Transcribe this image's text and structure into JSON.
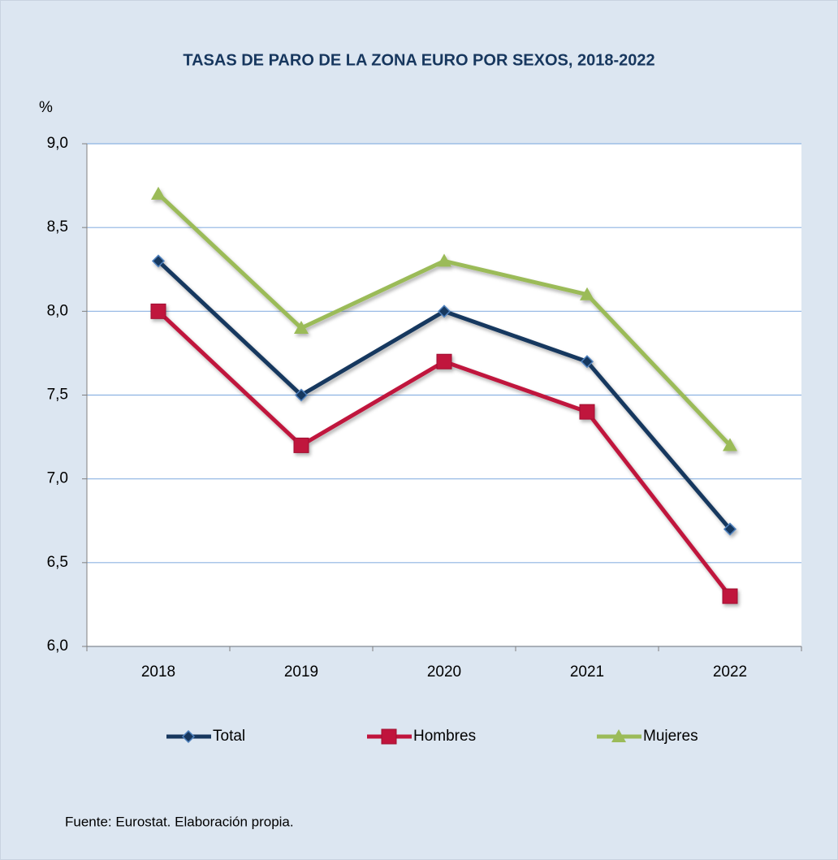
{
  "chart_data": {
    "type": "line",
    "title": "TASAS DE PARO DE LA ZONA EURO POR SEXOS, 2018-2022",
    "y_label": "%",
    "categories": [
      "2018",
      "2019",
      "2020",
      "2021",
      "2022"
    ],
    "series": [
      {
        "name": "Total",
        "color": "#17375e",
        "marker": "diamond",
        "values": [
          8.3,
          7.5,
          8.0,
          7.7,
          6.7
        ]
      },
      {
        "name": "Hombres",
        "color": "#c0143c",
        "marker": "square",
        "values": [
          8.0,
          7.2,
          7.7,
          7.4,
          6.3
        ]
      },
      {
        "name": "Mujeres",
        "color": "#9bbb59",
        "marker": "triangle",
        "values": [
          8.7,
          7.9,
          8.3,
          8.1,
          7.2
        ]
      }
    ],
    "ylim": [
      6,
      9
    ],
    "yticks": [
      {
        "value": 6,
        "label": "6,0"
      },
      {
        "value": 6.5,
        "label": "6,5"
      },
      {
        "value": 7,
        "label": "7,0"
      },
      {
        "value": 7.5,
        "label": "7,5"
      },
      {
        "value": 8,
        "label": "8,0"
      },
      {
        "value": 8.5,
        "label": "8,5"
      },
      {
        "value": 9,
        "label": "9,0"
      }
    ],
    "grid": true,
    "legend": "bottom",
    "source": "Fuente:  Eurostat. Elaboración propia."
  }
}
